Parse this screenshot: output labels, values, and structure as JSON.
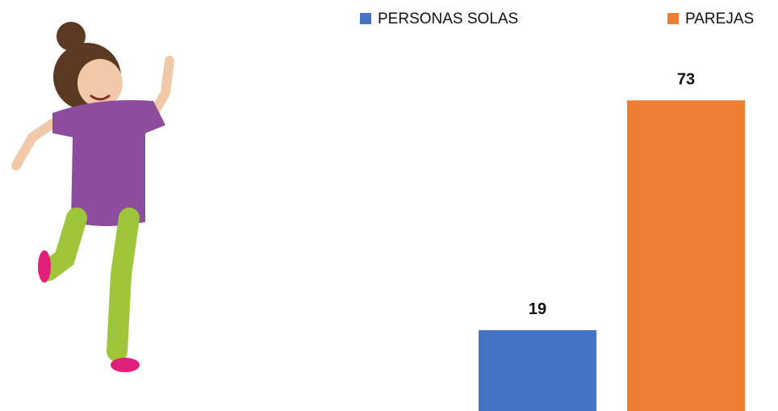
{
  "chart_data": {
    "type": "bar",
    "categories": [
      null
    ],
    "series": [
      {
        "name": "PERSONAS SOLAS",
        "color": "#4472c4",
        "values": [
          19
        ]
      },
      {
        "name": "PAREJAS",
        "color": "#ed7d31",
        "values": [
          73
        ]
      }
    ]
  }
}
